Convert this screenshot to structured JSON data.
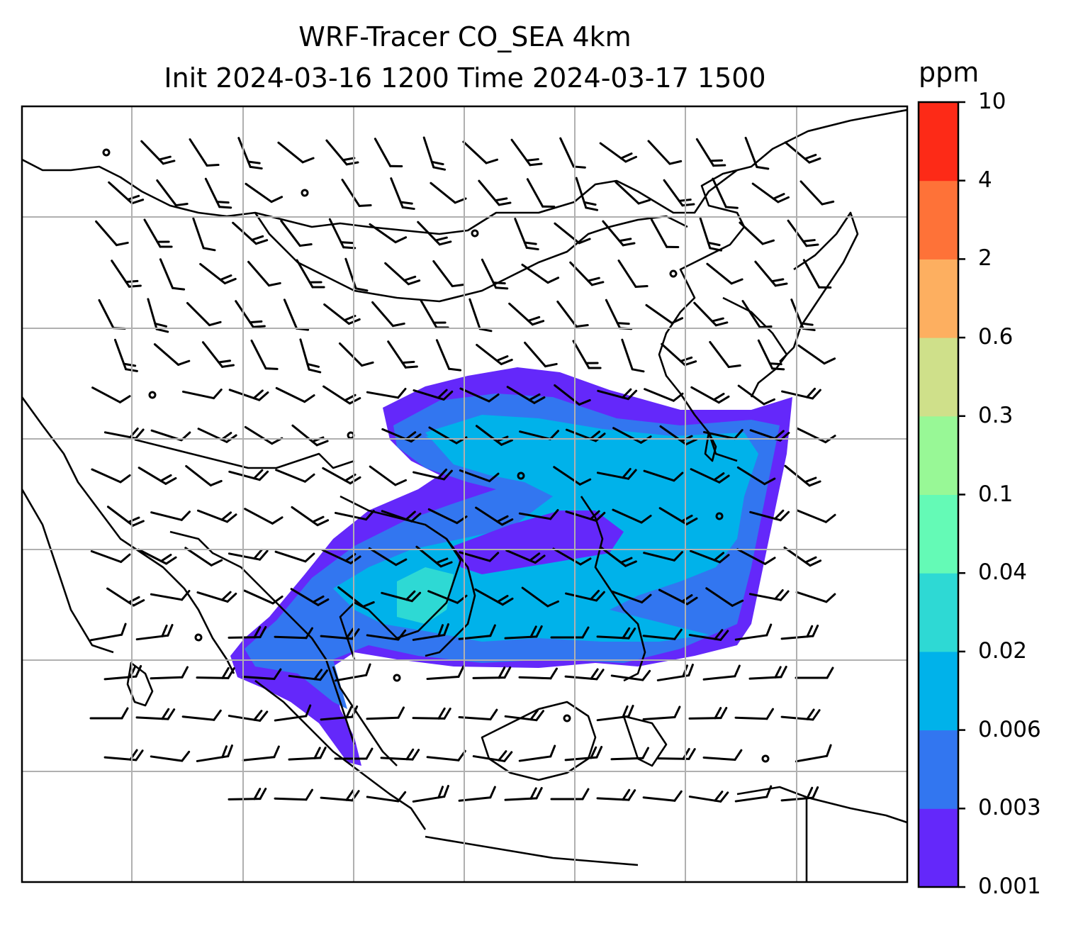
{
  "title": {
    "line1": "WRF-Tracer CO_SEA 4km",
    "line2": "Init 2024-03-16 1200 Time 2024-03-17 1500"
  },
  "colorbar": {
    "unit": "ppm",
    "levels": [
      "0.001",
      "0.003",
      "0.006",
      "0.02",
      "0.04",
      "0.1",
      "0.3",
      "0.6",
      "2",
      "4",
      "10"
    ],
    "colors": [
      "#6428fa",
      "#3276f0",
      "#00b2ea",
      "#2ed9d4",
      "#64fab6",
      "#98f896",
      "#cfe08a",
      "#fdaf60",
      "#fe7238",
      "#fd2a17"
    ]
  },
  "map": {
    "plume_colors": {
      "outer": "#6428fa",
      "mid": "#3276f0",
      "inner": "#00b2ea",
      "core": "#2ed9d4"
    },
    "gridline_color": "#b0b0b0",
    "coastline_color": "#000000",
    "overlay": "wind-barbs"
  }
}
